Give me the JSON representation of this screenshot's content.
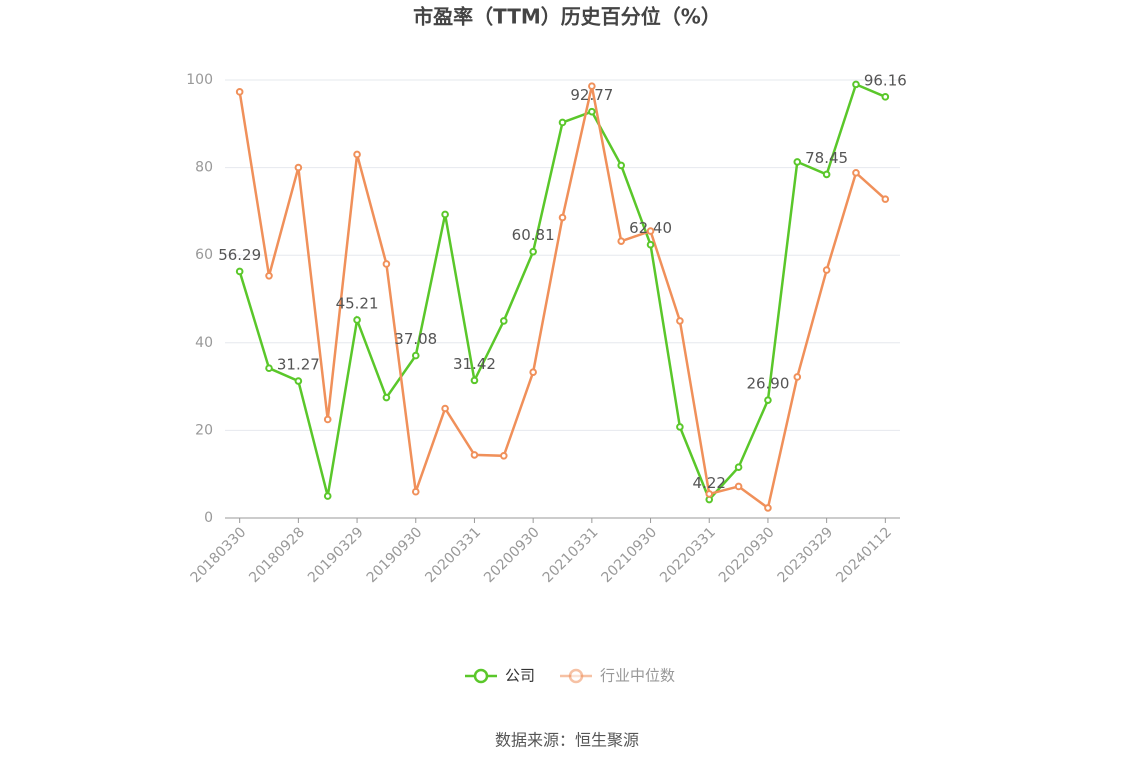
{
  "chart_data": {
    "type": "line",
    "title": "市盈率（TTM）历史百分位（%）",
    "source": "数据来源：恒生聚源",
    "categories": [
      "20180330",
      null,
      "20180928",
      null,
      "20190329",
      null,
      "20190930",
      null,
      "20200331",
      null,
      "20200930",
      null,
      "20210331",
      null,
      "20210930",
      null,
      "20220331",
      null,
      "20220930",
      null,
      "20230329",
      null,
      "20240112"
    ],
    "series": [
      {
        "name": "公司",
        "color": "#5ac72a",
        "values": [
          56.29,
          34.2,
          31.27,
          5,
          45.21,
          27.5,
          37.08,
          69.3,
          31.42,
          45,
          60.81,
          90.3,
          92.77,
          80.5,
          62.4,
          20.8,
          4.22,
          11.6,
          26.9,
          81.3,
          78.45,
          99,
          96.16
        ],
        "value_labels": [
          "56.29",
          null,
          "31.27",
          null,
          "45.21",
          null,
          "37.08",
          null,
          "31.42",
          null,
          "60.81",
          null,
          "92.77",
          null,
          "62.40",
          null,
          "4.22",
          null,
          "26.90",
          null,
          "78.45",
          null,
          "96.16"
        ]
      },
      {
        "name": "行业中位数",
        "color": "#f0905a",
        "values": [
          97.3,
          55.3,
          80,
          22.5,
          83,
          58,
          6,
          25,
          14.4,
          14.2,
          33.3,
          68.6,
          98.6,
          63.2,
          65.5,
          45,
          5.5,
          7.2,
          2.3,
          32.2,
          56.6,
          78.8,
          72.8
        ]
      }
    ],
    "ylim": [
      0,
      100
    ],
    "yticks": [
      0,
      20,
      40,
      60,
      80,
      100
    ],
    "grid": true,
    "legend": "bottom"
  }
}
